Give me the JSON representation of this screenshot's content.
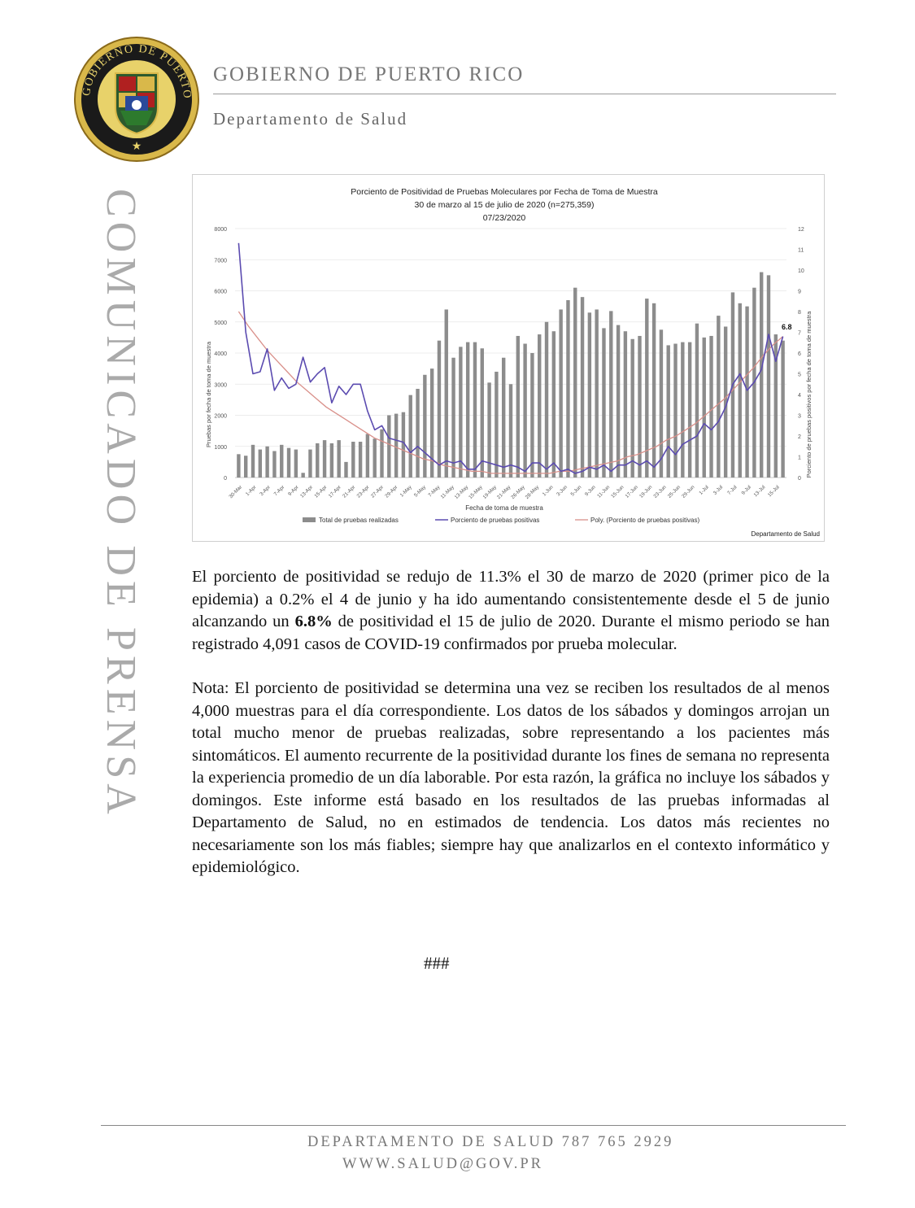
{
  "header": {
    "title": "GOBIERNO DE PUERTO RICO",
    "subtitle": "Departamento de Salud",
    "seal_text": "GOBIERNO DE PUERTO RICO"
  },
  "side_banner": "COMUNICADO DE PRENSA",
  "chart_data": {
    "type": "bar+line",
    "title": "Porciento de Positividad de Pruebas Moleculares por Fecha de Toma de Muestra",
    "subtitle": "30 de marzo al 15 de julio de 2020  (n=275,359)",
    "date": "07/23/2020",
    "xlabel": "Fecha de toma de muestra",
    "ylabel_left": "Pruebas por fecha de toma de muestra",
    "ylabel_right": "Porciento de pruebas positivos por fecha de toma de muestra",
    "ylim_left": [
      0,
      8000
    ],
    "ylim_right": [
      0,
      12
    ],
    "y_ticks_left": [
      "0",
      "1000",
      "2000",
      "3000",
      "4000",
      "5000",
      "6000",
      "7000",
      "8000"
    ],
    "y_ticks_right": [
      "0",
      "1",
      "2",
      "3",
      "4",
      "5",
      "6",
      "7",
      "8",
      "9",
      "10",
      "11",
      "12"
    ],
    "x_ticks": [
      "30-Mar",
      "1-Apr",
      "3-Apr",
      "7-Apr",
      "9-Apr",
      "13-Apr",
      "15-Apr",
      "17-Apr",
      "21-Apr",
      "23-Apr",
      "27-Apr",
      "29-Apr",
      "1-May",
      "5-May",
      "7-May",
      "11-May",
      "13-May",
      "15-May",
      "19-May",
      "21-May",
      "26-May",
      "28-May",
      "1-Jun",
      "3-Jun",
      "5-Jun",
      "9-Jun",
      "11-Jun",
      "15-Jun",
      "17-Jun",
      "19-Jun",
      "23-Jun",
      "25-Jun",
      "29-Jun",
      "1-Jul",
      "3-Jul",
      "7-Jul",
      "9-Jul",
      "13-Jul",
      "15-Jul"
    ],
    "series": [
      {
        "name": "Total de pruebas realizadas",
        "type": "bar",
        "values": [
          750,
          700,
          1050,
          900,
          1000,
          850,
          1050,
          950,
          900,
          150,
          900,
          1100,
          1200,
          1100,
          1200,
          500,
          1150,
          1150,
          1400,
          1250,
          1550,
          2000,
          2050,
          2100,
          2650,
          2850,
          3300,
          3500,
          4400,
          5400,
          3850,
          4200,
          4350,
          4350,
          4150,
          3050,
          3400,
          3850,
          3000,
          4550,
          4300,
          4000,
          4600,
          5000,
          4700,
          5400,
          5700,
          6100,
          5800,
          5300,
          5400,
          4800,
          5350,
          4900,
          4700,
          4450,
          4550,
          5750,
          5600,
          4750,
          4250,
          4300,
          4350,
          4350,
          4950,
          4500,
          4550,
          5200,
          4850,
          5950,
          5600,
          5500,
          6100,
          6600,
          6500,
          4600,
          4400
        ]
      },
      {
        "name": "Porciento de pruebas positivas",
        "type": "line",
        "values": [
          11.3,
          7.0,
          5.0,
          5.1,
          6.2,
          4.2,
          4.8,
          4.3,
          4.5,
          5.8,
          4.6,
          5.0,
          5.3,
          3.6,
          4.4,
          4.0,
          4.5,
          4.5,
          3.2,
          2.3,
          2.5,
          1.9,
          1.8,
          1.7,
          1.2,
          1.5,
          1.2,
          0.9,
          0.6,
          0.8,
          0.7,
          0.8,
          0.4,
          0.4,
          0.8,
          0.7,
          0.6,
          0.5,
          0.6,
          0.5,
          0.3,
          0.7,
          0.7,
          0.4,
          0.7,
          0.3,
          0.4,
          0.2,
          0.3,
          0.5,
          0.4,
          0.6,
          0.3,
          0.6,
          0.6,
          0.8,
          0.6,
          0.8,
          0.5,
          0.9,
          1.5,
          1.1,
          1.6,
          1.8,
          2.0,
          2.6,
          2.3,
          2.7,
          3.4,
          4.5,
          5.0,
          4.2,
          4.6,
          5.2,
          6.9,
          5.6,
          6.8
        ]
      },
      {
        "name": "Poly. (Porciento de pruebas positivas)",
        "type": "trend",
        "values": [
          8.0,
          7.3,
          6.7,
          6.1,
          5.6,
          5.1,
          4.6,
          4.2,
          3.8,
          3.4,
          3.1,
          2.8,
          2.5,
          2.2,
          1.9,
          1.7,
          1.5,
          1.3,
          1.1,
          0.9,
          0.8,
          0.6,
          0.5,
          0.4,
          0.3,
          0.3,
          0.2,
          0.2,
          0.2,
          0.2,
          0.2,
          0.2,
          0.2,
          0.3,
          0.3,
          0.4,
          0.5,
          0.6,
          0.7,
          0.8,
          1.0,
          1.1,
          1.3,
          1.5,
          1.8,
          2.0,
          2.3,
          2.6,
          3.0,
          3.4,
          3.8,
          4.3,
          4.8,
          5.3,
          5.9,
          6.4,
          6.8
        ]
      }
    ],
    "annotation": "6.8",
    "source": "Departamento de Salud",
    "legend_position": "bottom"
  },
  "paragraphs": {
    "p1_a": "El porciento de positividad se redujo de 11.3% el 30 de marzo de 2020 (primer pico de la epidemia) a 0.2% el 4 de junio y ha ido aumentando consistentemente desde el 5 de junio alcanzando un ",
    "p1_bold": "6.8%",
    "p1_b": " de positividad el 15 de julio de 2020. Durante el mismo periodo se han registrado 4,091 casos de COVID-19 confirmados por prueba molecular.",
    "p2": "Nota: El porciento de positividad se determina una vez se reciben los resultados de al menos 4,000 muestras para el día correspondiente. Los datos de los sábados y domingos arrojan un total mucho menor de pruebas realizadas, sobre representando a los pacientes más sintomáticos. El aumento recurrente de la positividad durante los fines de semana no representa la experiencia promedio de un día laborable. Por esta razón, la gráfica no incluye los sábados y domingos.  Este informe está basado en los resultados de las pruebas informadas al Departamento de Salud, no en estimados de tendencia. Los datos más recientes no necesariamente son los más fiables; siempre hay que analizarlos en el contexto informático y epidemiológico."
  },
  "end_mark": "###",
  "footer": {
    "line1": "DEPARTAMENTO DE SALUD 787 765 2929",
    "line2": "WWW.SALUD@GOV.PR"
  }
}
